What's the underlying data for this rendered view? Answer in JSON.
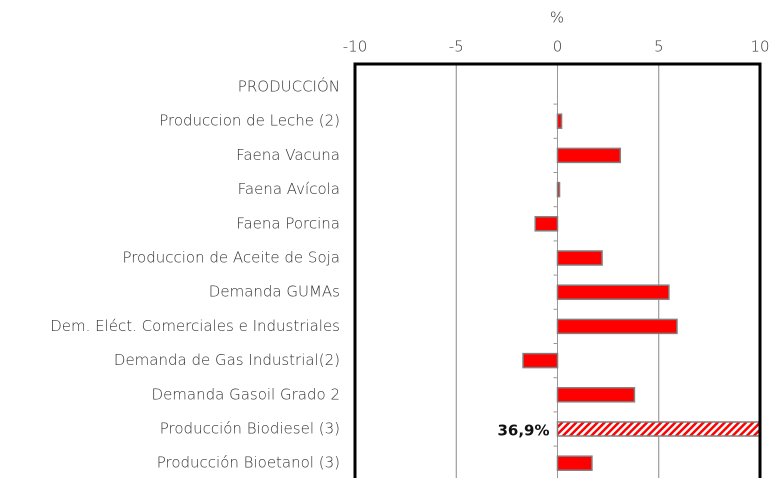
{
  "chart_data": {
    "type": "barh",
    "xlabel": "%",
    "categories": [
      "PRODUCCIÓN",
      "Produccion de Leche (2)",
      "Faena Vacuna",
      "Faena Avícola",
      "Faena Porcina",
      "Produccion de Aceite de Soja",
      "Demanda  GUMAs",
      "Dem. Eléct. Comerciales e Industriales",
      "Demanda de Gas Industrial(2)",
      "Demanda Gasoil Grado 2",
      "Producción Biodiesel (3)",
      "Producción Bioetanol (3)"
    ],
    "values": [
      null,
      0.2,
      3.1,
      0.1,
      -1.1,
      2.2,
      5.5,
      5.9,
      -1.7,
      3.8,
      36.9,
      1.7
    ],
    "value_labels": [
      null,
      null,
      null,
      null,
      null,
      null,
      null,
      null,
      null,
      null,
      "36,9%",
      null
    ],
    "hatched_categories": [
      "Producción Biodiesel (3)"
    ],
    "color": "#ff0000",
    "xlim": [
      -10,
      10
    ],
    "xticks": [
      -10,
      -5,
      0,
      5,
      10
    ],
    "grid": true
  }
}
